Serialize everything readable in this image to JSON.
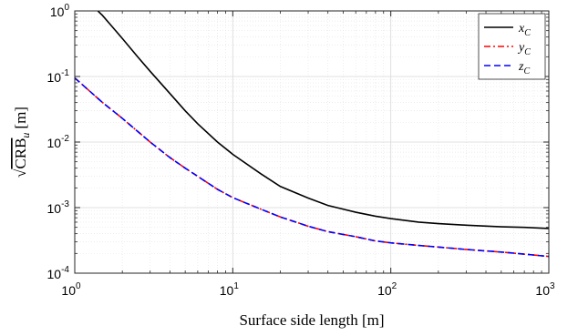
{
  "chart_data": {
    "type": "line",
    "title": "",
    "xlabel": "Surface side length [m]",
    "ylabel": "√CRB_u [m]",
    "ylabel_parts": {
      "radical": "√",
      "base": "CRB",
      "subscript": "u",
      "unit": "[m]"
    },
    "x_scale": "log",
    "y_scale": "log",
    "xlim": [
      1,
      1000
    ],
    "ylim": [
      0.0001,
      1
    ],
    "x_ticks": [
      {
        "base": "10",
        "exp": "0"
      },
      {
        "base": "10",
        "exp": "1"
      },
      {
        "base": "10",
        "exp": "2"
      },
      {
        "base": "10",
        "exp": "3"
      }
    ],
    "y_ticks": [
      {
        "base": "10",
        "exp": "-4"
      },
      {
        "base": "10",
        "exp": "-3"
      },
      {
        "base": "10",
        "exp": "-2"
      },
      {
        "base": "10",
        "exp": "-1"
      },
      {
        "base": "10",
        "exp": "0"
      }
    ],
    "grid": true,
    "legend_position": "top-right",
    "series": [
      {
        "name": "x_C",
        "legend": {
          "base": "x",
          "sub": "C"
        },
        "color": "#000000",
        "dash": "solid",
        "x": [
          1.4,
          1.5,
          1.7,
          2,
          2.5,
          3,
          4,
          5,
          6,
          8,
          10,
          15,
          20,
          30,
          40,
          60,
          80,
          100,
          150,
          200,
          300,
          500,
          700,
          1000
        ],
        "y": [
          1.0,
          0.85,
          0.6,
          0.38,
          0.2,
          0.12,
          0.055,
          0.03,
          0.019,
          0.01,
          0.0065,
          0.0033,
          0.0021,
          0.0014,
          0.00108,
          0.00085,
          0.00074,
          0.00068,
          0.0006,
          0.00057,
          0.00054,
          0.00051,
          0.0005,
          0.00048
        ]
      },
      {
        "name": "y_C",
        "legend": {
          "base": "y",
          "sub": "C"
        },
        "color": "#ff0000",
        "dash": "dashdot",
        "x": [
          1,
          1.5,
          2,
          3,
          4,
          5,
          6,
          8,
          10,
          15,
          20,
          30,
          40,
          60,
          80,
          100,
          150,
          200,
          300,
          500,
          700,
          1000
        ],
        "y": [
          0.095,
          0.04,
          0.023,
          0.01,
          0.0058,
          0.004,
          0.003,
          0.0019,
          0.00142,
          0.00095,
          0.00072,
          0.00052,
          0.00043,
          0.00036,
          0.00031,
          0.00029,
          0.000265,
          0.00025,
          0.00023,
          0.00021,
          0.000195,
          0.00018
        ]
      },
      {
        "name": "z_C",
        "legend": {
          "base": "z",
          "sub": "C"
        },
        "color": "#0000ff",
        "dash": "dashed",
        "x": [
          1,
          1.5,
          2,
          3,
          4,
          5,
          6,
          8,
          10,
          15,
          20,
          30,
          40,
          60,
          80,
          100,
          150,
          200,
          300,
          500,
          700,
          1000
        ],
        "y": [
          0.095,
          0.04,
          0.023,
          0.01,
          0.0058,
          0.004,
          0.003,
          0.0019,
          0.00142,
          0.00095,
          0.00072,
          0.00052,
          0.00043,
          0.00036,
          0.00031,
          0.00029,
          0.000265,
          0.00025,
          0.00023,
          0.00021,
          0.000195,
          0.00018
        ]
      }
    ]
  }
}
